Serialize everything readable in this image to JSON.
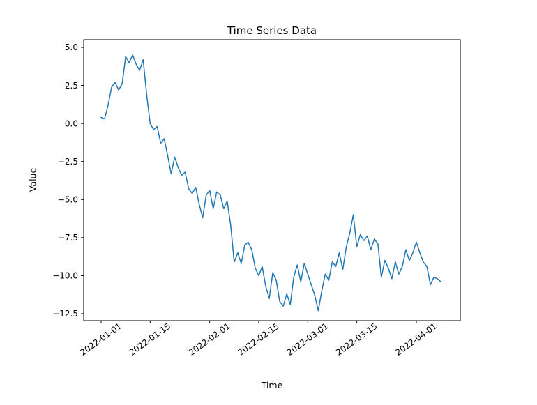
{
  "chart_data": {
    "type": "line",
    "title": "Time Series Data",
    "xlabel": "Time",
    "ylabel": "Value",
    "x_start_date": "2022-01-01",
    "x_frequency": "daily",
    "x_tick_labels": [
      "2022-01-01",
      "2022-01-15",
      "2022-02-01",
      "2022-02-15",
      "2022-03-01",
      "2022-03-15",
      "2022-04-01"
    ],
    "y_ticks": [
      5.0,
      2.5,
      0.0,
      -2.5,
      -5.0,
      -7.5,
      -10.0,
      -12.5
    ],
    "ylim": [
      -13.0,
      5.5
    ],
    "grid": false,
    "legend": "none",
    "line_color": "#1f77b4",
    "series": [
      {
        "name": "value",
        "values": [
          0.4,
          0.3,
          1.2,
          2.4,
          2.7,
          2.2,
          2.6,
          4.4,
          4.0,
          4.5,
          3.9,
          3.5,
          4.2,
          1.9,
          0.0,
          -0.4,
          -0.2,
          -1.3,
          -1.0,
          -2.1,
          -3.3,
          -2.2,
          -2.9,
          -3.4,
          -3.2,
          -4.3,
          -4.6,
          -4.2,
          -5.3,
          -6.2,
          -4.7,
          -4.4,
          -5.6,
          -4.5,
          -4.7,
          -5.6,
          -5.1,
          -6.7,
          -9.1,
          -8.5,
          -9.2,
          -8.0,
          -7.8,
          -8.3,
          -9.5,
          -10.0,
          -9.4,
          -10.7,
          -11.5,
          -9.8,
          -10.3,
          -11.7,
          -12.0,
          -11.2,
          -11.9,
          -10.1,
          -9.3,
          -10.4,
          -9.2,
          -9.9,
          -10.6,
          -11.3,
          -12.3,
          -11.0,
          -9.9,
          -10.3,
          -9.1,
          -9.4,
          -8.5,
          -9.6,
          -8.1,
          -7.2,
          -6.0,
          -8.1,
          -7.3,
          -7.7,
          -7.4,
          -8.3,
          -7.6,
          -7.9,
          -10.1,
          -9.0,
          -9.5,
          -10.2,
          -9.1,
          -9.9,
          -9.4,
          -8.3,
          -9.0,
          -8.5,
          -7.8,
          -8.5,
          -9.1,
          -9.4,
          -10.6,
          -10.1,
          -10.2,
          -10.4
        ]
      }
    ]
  }
}
